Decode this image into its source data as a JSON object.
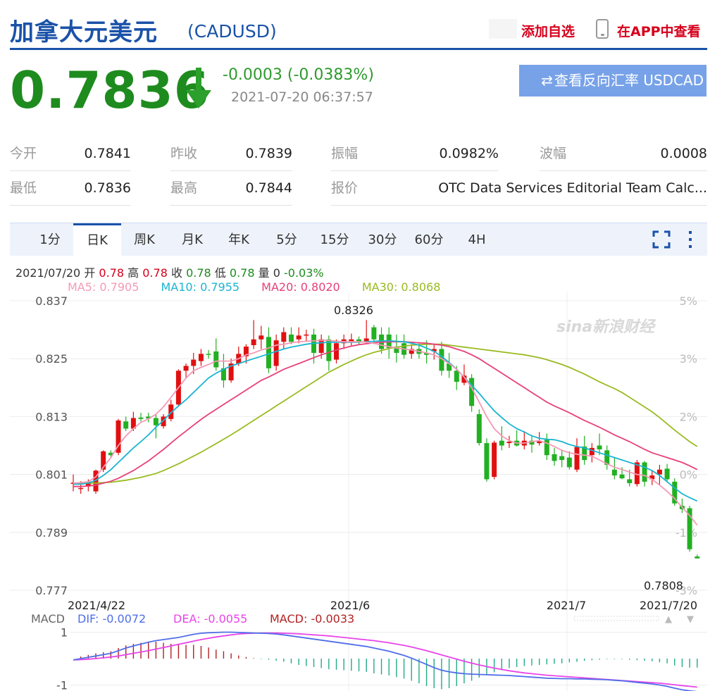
{
  "header": {
    "title": "加拿大元美元",
    "code": "(CADUSD)",
    "add_favorite": "添加自选",
    "view_in_app": "在APP中查看"
  },
  "quote": {
    "price": "0.7836",
    "change": "-0.0003 (-0.0383%)",
    "timestamp": "2021-07-20 06:37:57",
    "reverse_button": "查看反向汇率 USDCAD",
    "direction_icon": "down-arrow-icon",
    "down_color": "#1e8b1e"
  },
  "stats": [
    {
      "label": "今开",
      "value": "0.7841"
    },
    {
      "label": "昨收",
      "value": "0.7839"
    },
    {
      "label": "振幅",
      "value": "0.0982%"
    },
    {
      "label": "波幅",
      "value": "0.0008"
    },
    {
      "label": "最低",
      "value": "0.7836"
    },
    {
      "label": "最高",
      "value": "0.7844"
    },
    {
      "label": "报价",
      "value": "OTC Data Services Editorial Team Calc..."
    }
  ],
  "tabs": [
    "1分",
    "日K",
    "周K",
    "月K",
    "年K",
    "5分",
    "15分",
    "30分",
    "60分",
    "4H"
  ],
  "active_tab": "日K",
  "ohlc": {
    "date": "2021/07/20",
    "open_label": "开",
    "open": "0.78",
    "high_label": "高",
    "high": "0.78",
    "close_label": "收",
    "close": "0.78",
    "low_label": "低",
    "low": "0.78",
    "vol_label": "量",
    "vol": "0",
    "pct": "-0.03%"
  },
  "ma_legend": {
    "ma5": "MA5: 0.7905",
    "ma10": "MA10: 0.7955",
    "ma20": "MA20: 0.8020",
    "ma30": "MA30: 0.8068"
  },
  "macd_legend": {
    "label": "MACD",
    "dif": "DIF: -0.0072",
    "dea": "DEA: -0.0055",
    "macd": "MACD: -0.0033"
  },
  "watermark": "sina新浪财经",
  "colors": {
    "brand_blue": "#1a52a8",
    "up": "#d6001c",
    "down": "#1e8b1e",
    "ma5": "#f49ab5",
    "ma10": "#1ab5d2",
    "ma20": "#e8407a",
    "ma30": "#99bb22",
    "dif": "#4f6ee8",
    "dea": "#e844e8",
    "macd_bar_up": "#b22222",
    "macd_bar_down": "#22aa88"
  },
  "chart_data": {
    "type": "candlestick",
    "y_ticks": [
      "0.837",
      "0.825",
      "0.813",
      "0.801",
      "0.789",
      "0.777"
    ],
    "y_pct_ticks": [
      "5%",
      "3%",
      "2%",
      "0%",
      "-1%",
      "-3%"
    ],
    "ylim": [
      0.777,
      0.837
    ],
    "x_ticks": [
      "2021/4/22",
      "2021/6",
      "2021/7",
      "2021/7/20"
    ],
    "max_label": "0.8326",
    "min_label": "0.7808",
    "candles": [
      [
        0.7993,
        0.801,
        0.7975,
        0.7993
      ],
      [
        0.798,
        0.7996,
        0.797,
        0.7982
      ],
      [
        0.7985,
        0.8,
        0.7975,
        0.7995
      ],
      [
        0.7975,
        0.802,
        0.797,
        0.8018
      ],
      [
        0.802,
        0.806,
        0.8015,
        0.8058
      ],
      [
        0.8055,
        0.806,
        0.8045,
        0.805
      ],
      [
        0.8055,
        0.8125,
        0.805,
        0.8122
      ],
      [
        0.812,
        0.813,
        0.81,
        0.8105
      ],
      [
        0.8105,
        0.814,
        0.81,
        0.8127
      ],
      [
        0.8128,
        0.8138,
        0.812,
        0.8125
      ],
      [
        0.813,
        0.8138,
        0.8118,
        0.8126
      ],
      [
        0.8127,
        0.8135,
        0.8085,
        0.8112
      ],
      [
        0.811,
        0.8135,
        0.8105,
        0.813
      ],
      [
        0.8125,
        0.8165,
        0.812,
        0.8155
      ],
      [
        0.8155,
        0.8228,
        0.815,
        0.8225
      ],
      [
        0.8225,
        0.824,
        0.821,
        0.8235
      ],
      [
        0.8235,
        0.8262,
        0.8218,
        0.8248
      ],
      [
        0.8245,
        0.827,
        0.8235,
        0.826
      ],
      [
        0.826,
        0.8268,
        0.825,
        0.8258
      ],
      [
        0.8265,
        0.8292,
        0.8225,
        0.8232
      ],
      [
        0.823,
        0.826,
        0.819,
        0.8205
      ],
      [
        0.8205,
        0.825,
        0.82,
        0.824
      ],
      [
        0.824,
        0.8275,
        0.8235,
        0.826
      ],
      [
        0.8255,
        0.828,
        0.824,
        0.8275
      ],
      [
        0.8278,
        0.833,
        0.827,
        0.829
      ],
      [
        0.829,
        0.8318,
        0.827,
        0.8298
      ],
      [
        0.8295,
        0.8315,
        0.822,
        0.823
      ],
      [
        0.8235,
        0.83,
        0.8225,
        0.8288
      ],
      [
        0.8285,
        0.8315,
        0.827,
        0.8305
      ],
      [
        0.83,
        0.8315,
        0.828,
        0.8285
      ],
      [
        0.829,
        0.8315,
        0.8282,
        0.8298
      ],
      [
        0.83,
        0.831,
        0.8285,
        0.83
      ],
      [
        0.83,
        0.8312,
        0.824,
        0.8262
      ],
      [
        0.8262,
        0.83,
        0.825,
        0.829
      ],
      [
        0.829,
        0.8298,
        0.8225,
        0.8245
      ],
      [
        0.8248,
        0.829,
        0.824,
        0.8282
      ],
      [
        0.8282,
        0.83,
        0.827,
        0.829
      ],
      [
        0.8285,
        0.8302,
        0.8275,
        0.829
      ],
      [
        0.829,
        0.8296,
        0.828,
        0.8285
      ],
      [
        0.8285,
        0.833,
        0.8282,
        0.8292
      ],
      [
        0.8315,
        0.832,
        0.828,
        0.829
      ],
      [
        0.83,
        0.8315,
        0.826,
        0.827
      ],
      [
        0.83,
        0.8315,
        0.825,
        0.8272
      ],
      [
        0.8275,
        0.83,
        0.8242,
        0.8262
      ],
      [
        0.8282,
        0.83,
        0.825,
        0.8258
      ],
      [
        0.826,
        0.828,
        0.825,
        0.827
      ],
      [
        0.827,
        0.8282,
        0.825,
        0.826
      ],
      [
        0.8262,
        0.8288,
        0.824,
        0.8258
      ],
      [
        0.8265,
        0.828,
        0.8248,
        0.827
      ],
      [
        0.827,
        0.8285,
        0.8215,
        0.8225
      ],
      [
        0.824,
        0.8262,
        0.821,
        0.8225
      ],
      [
        0.8225,
        0.8235,
        0.8185,
        0.8202
      ],
      [
        0.82,
        0.8238,
        0.8195,
        0.8215
      ],
      [
        0.821,
        0.8218,
        0.814,
        0.8152
      ],
      [
        0.8135,
        0.8145,
        0.807,
        0.8075
      ],
      [
        0.8075,
        0.8085,
        0.7995,
        0.8
      ],
      [
        0.8005,
        0.808,
        0.8,
        0.8076
      ],
      [
        0.808,
        0.811,
        0.806,
        0.807
      ],
      [
        0.8075,
        0.809,
        0.8065,
        0.8078
      ],
      [
        0.808,
        0.8102,
        0.8068,
        0.807
      ],
      [
        0.807,
        0.81,
        0.8062,
        0.808
      ],
      [
        0.808,
        0.8092,
        0.8055,
        0.8072
      ],
      [
        0.8075,
        0.8098,
        0.807,
        0.808
      ],
      [
        0.8082,
        0.8095,
        0.804,
        0.805
      ],
      [
        0.8052,
        0.8065,
        0.8028,
        0.8038
      ],
      [
        0.8048,
        0.8062,
        0.8025,
        0.804
      ],
      [
        0.8045,
        0.8058,
        0.802,
        0.8025
      ],
      [
        0.802,
        0.8085,
        0.8015,
        0.8067
      ],
      [
        0.8068,
        0.809,
        0.803,
        0.804
      ],
      [
        0.805,
        0.8075,
        0.8035,
        0.8065
      ],
      [
        0.807,
        0.8095,
        0.805,
        0.8062
      ],
      [
        0.806,
        0.807,
        0.802,
        0.803
      ],
      [
        0.802,
        0.8045,
        0.8,
        0.8008
      ],
      [
        0.801,
        0.8025,
        0.8,
        0.8002
      ],
      [
        0.8,
        0.802,
        0.7985,
        0.7992
      ],
      [
        0.799,
        0.804,
        0.7985,
        0.8035
      ],
      [
        0.8035,
        0.8038,
        0.7985,
        0.7995
      ],
      [
        0.8,
        0.8018,
        0.7988,
        0.8008
      ],
      [
        0.801,
        0.803,
        0.7988,
        0.802
      ],
      [
        0.8022,
        0.8032,
        0.7995,
        0.8
      ],
      [
        0.7995,
        0.8002,
        0.7945,
        0.795
      ],
      [
        0.7945,
        0.796,
        0.793,
        0.7938
      ],
      [
        0.794,
        0.7945,
        0.785,
        0.7855
      ],
      [
        0.784,
        0.7844,
        0.7836,
        0.7836
      ]
    ],
    "ma5": [
      0.7992,
      0.7993,
      0.7995,
      0.8005,
      0.8025,
      0.8045,
      0.807,
      0.809,
      0.8105,
      0.8118,
      0.8125,
      0.8135,
      0.815,
      0.817,
      0.819,
      0.821,
      0.8225,
      0.8232,
      0.8238,
      0.8245,
      0.8245,
      0.8245,
      0.825,
      0.8258,
      0.8262,
      0.8268,
      0.8272,
      0.8278,
      0.828,
      0.8283,
      0.8285,
      0.8286,
      0.8287,
      0.8288,
      0.8288,
      0.8286,
      0.8285,
      0.8285,
      0.8285,
      0.8284,
      0.8282,
      0.8278,
      0.8275,
      0.8272,
      0.827,
      0.8268,
      0.8265,
      0.8262,
      0.8258,
      0.825,
      0.824,
      0.8228,
      0.8212,
      0.819,
      0.816,
      0.813,
      0.8105,
      0.809,
      0.808,
      0.8075,
      0.8075,
      0.8078,
      0.808,
      0.8075,
      0.8068,
      0.806,
      0.8055,
      0.8052,
      0.805,
      0.8048,
      0.804,
      0.8032,
      0.8025,
      0.802,
      0.8015,
      0.801,
      0.8008,
      0.8,
      0.7988,
      0.7975,
      0.796,
      0.7942,
      0.7925,
      0.7905
    ],
    "ma10": [
      0.799,
      0.799,
      0.7992,
      0.7998,
      0.8008,
      0.802,
      0.8035,
      0.805,
      0.8065,
      0.8078,
      0.8092,
      0.8108,
      0.8122,
      0.8138,
      0.8152,
      0.8165,
      0.818,
      0.8195,
      0.821,
      0.822,
      0.8228,
      0.8235,
      0.824,
      0.8245,
      0.825,
      0.8255,
      0.826,
      0.8265,
      0.827,
      0.8274,
      0.8277,
      0.828,
      0.8282,
      0.8283,
      0.8284,
      0.8284,
      0.8284,
      0.8284,
      0.8284,
      0.8285,
      0.8286,
      0.8287,
      0.8287,
      0.8286,
      0.8285,
      0.8282,
      0.8278,
      0.8272,
      0.8265,
      0.8255,
      0.8242,
      0.8228,
      0.8212,
      0.8195,
      0.8178,
      0.816,
      0.8142,
      0.8128,
      0.8115,
      0.8105,
      0.8098,
      0.809,
      0.8085,
      0.8083,
      0.8082,
      0.8078,
      0.8072,
      0.8068,
      0.8065,
      0.806,
      0.8055,
      0.805,
      0.8045,
      0.804,
      0.8035,
      0.803,
      0.8025,
      0.8018,
      0.8008,
      0.7995,
      0.7982,
      0.797,
      0.7962,
      0.7955
    ],
    "ma20": [
      0.7985,
      0.7985,
      0.7986,
      0.7988,
      0.7992,
      0.7996,
      0.8002,
      0.801,
      0.8018,
      0.8028,
      0.8038,
      0.805,
      0.8062,
      0.8075,
      0.8088,
      0.81,
      0.8112,
      0.8124,
      0.8135,
      0.8145,
      0.8155,
      0.8165,
      0.8175,
      0.8185,
      0.8195,
      0.8205,
      0.8212,
      0.822,
      0.8228,
      0.8234,
      0.824,
      0.8246,
      0.8252,
      0.8258,
      0.8263,
      0.8268,
      0.8272,
      0.8276,
      0.8279,
      0.8281,
      0.8283,
      0.8284,
      0.8285,
      0.8285,
      0.8285,
      0.8284,
      0.8283,
      0.8282,
      0.828,
      0.8278,
      0.8275,
      0.827,
      0.8265,
      0.8258,
      0.825,
      0.824,
      0.823,
      0.822,
      0.821,
      0.82,
      0.819,
      0.818,
      0.817,
      0.816,
      0.8152,
      0.8145,
      0.8138,
      0.813,
      0.8122,
      0.8115,
      0.8108,
      0.81,
      0.8092,
      0.8085,
      0.8078,
      0.807,
      0.8062,
      0.8055,
      0.805,
      0.8045,
      0.804,
      0.8035,
      0.8028,
      0.802
    ],
    "ma30": [
      0.7992,
      0.7992,
      0.7992,
      0.7992,
      0.7993,
      0.7994,
      0.7996,
      0.7998,
      0.8001,
      0.8004,
      0.8008,
      0.8012,
      0.8018,
      0.8025,
      0.8032,
      0.804,
      0.8048,
      0.8056,
      0.8065,
      0.8074,
      0.8083,
      0.8092,
      0.8102,
      0.8112,
      0.8122,
      0.8132,
      0.8142,
      0.8152,
      0.8162,
      0.8172,
      0.8182,
      0.8192,
      0.8202,
      0.8212,
      0.8222,
      0.823,
      0.8238,
      0.8245,
      0.8252,
      0.8258,
      0.8263,
      0.8267,
      0.8271,
      0.8274,
      0.8276,
      0.8278,
      0.8279,
      0.828,
      0.828,
      0.828,
      0.8278,
      0.8276,
      0.8274,
      0.8272,
      0.827,
      0.8268,
      0.8266,
      0.8264,
      0.8262,
      0.826,
      0.8258,
      0.8255,
      0.8252,
      0.8248,
      0.8243,
      0.8238,
      0.8232,
      0.8225,
      0.8218,
      0.821,
      0.8202,
      0.8195,
      0.8188,
      0.818,
      0.817,
      0.816,
      0.815,
      0.814,
      0.8128,
      0.8115,
      0.8102,
      0.809,
      0.8078,
      0.8068
    ],
    "macd": {
      "y_ticks": [
        "1",
        "-1"
      ],
      "ylim": [
        -1.2,
        1.2
      ],
      "dif": [
        -0.05,
        0.0,
        0.05,
        0.1,
        0.15,
        0.2,
        0.3,
        0.4,
        0.48,
        0.55,
        0.62,
        0.68,
        0.72,
        0.76,
        0.8,
        0.86,
        0.92,
        0.96,
        0.98,
        0.99,
        1.0,
        1.0,
        0.99,
        0.98,
        0.97,
        0.96,
        0.95,
        0.93,
        0.9,
        0.86,
        0.82,
        0.78,
        0.74,
        0.7,
        0.66,
        0.62,
        0.58,
        0.54,
        0.5,
        0.46,
        0.4,
        0.34,
        0.28,
        0.2,
        0.12,
        0.02,
        -0.1,
        -0.22,
        -0.34,
        -0.44,
        -0.5,
        -0.54,
        -0.57,
        -0.59,
        -0.6,
        -0.61,
        -0.62,
        -0.63,
        -0.64,
        -0.66,
        -0.68,
        -0.7,
        -0.72,
        -0.74,
        -0.75,
        -0.76,
        -0.76,
        -0.77,
        -0.77,
        -0.78,
        -0.79,
        -0.8,
        -0.82,
        -0.84,
        -0.87,
        -0.9,
        -0.93,
        -0.96,
        -1.0,
        -1.05,
        -1.12,
        -1.18,
        -1.22,
        -1.25
      ],
      "dea": [
        -0.05,
        -0.04,
        -0.02,
        0.0,
        0.03,
        0.06,
        0.1,
        0.15,
        0.2,
        0.25,
        0.3,
        0.36,
        0.42,
        0.48,
        0.54,
        0.6,
        0.66,
        0.72,
        0.77,
        0.82,
        0.86,
        0.9,
        0.93,
        0.95,
        0.96,
        0.97,
        0.97,
        0.97,
        0.96,
        0.95,
        0.94,
        0.92,
        0.9,
        0.88,
        0.86,
        0.83,
        0.8,
        0.77,
        0.74,
        0.71,
        0.68,
        0.64,
        0.6,
        0.55,
        0.5,
        0.44,
        0.37,
        0.3,
        0.22,
        0.14,
        0.06,
        -0.02,
        -0.1,
        -0.17,
        -0.24,
        -0.3,
        -0.36,
        -0.41,
        -0.46,
        -0.5,
        -0.54,
        -0.57,
        -0.6,
        -0.63,
        -0.65,
        -0.67,
        -0.69,
        -0.71,
        -0.73,
        -0.75,
        -0.77,
        -0.79,
        -0.81,
        -0.83,
        -0.85,
        -0.87,
        -0.89,
        -0.91,
        -0.93,
        -0.96,
        -0.99,
        -1.02,
        -1.05,
        -1.08
      ]
    }
  }
}
